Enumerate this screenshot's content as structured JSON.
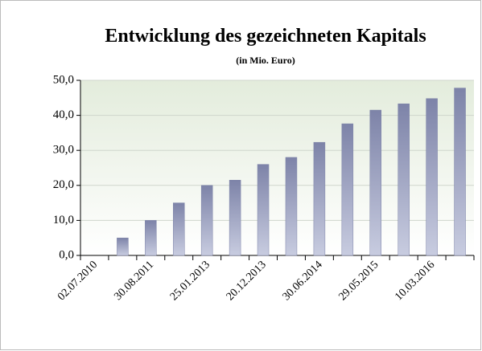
{
  "chart_data": {
    "type": "bar",
    "title": "Entwicklung des gezeichneten Kapitals",
    "subtitle": "(in Mio. Euro)",
    "categories": [
      "02.07.2010",
      null,
      "30.08.2011",
      null,
      "25.01.2013",
      null,
      "20.12.2013",
      null,
      "30.06.2014",
      null,
      "29.05.2015",
      null,
      "10.03.2016",
      null
    ],
    "values": [
      0,
      5,
      10,
      15,
      20,
      21.5,
      26,
      28,
      32.3,
      37.6,
      41.5,
      43.3,
      44.8,
      47.8
    ],
    "color": "#7d83a8",
    "ylim": [
      0,
      50
    ],
    "yticks": [
      {
        "value": 0,
        "label": "0,0"
      },
      {
        "value": 10,
        "label": "10,0"
      },
      {
        "value": 20,
        "label": "20,0"
      },
      {
        "value": 30,
        "label": "30,0"
      },
      {
        "value": 40,
        "label": "40,0"
      },
      {
        "value": 50,
        "label": "50,0"
      }
    ],
    "grid": true
  }
}
